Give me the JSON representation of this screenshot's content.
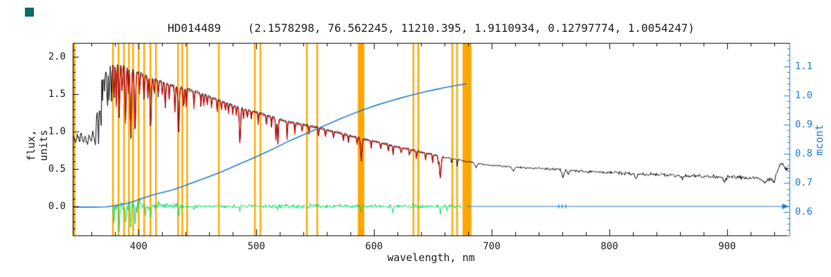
{
  "decorations": {
    "corner_swatch_color": "#0c6b6b"
  },
  "chart_data": {
    "type": "line",
    "title": "HD014489    (2.1578298, 76.562245, 11210.395, 1.9110934, 0.12797774, 1.0054247)",
    "xlabel": "wavelength, nm",
    "ylabel": "flux, units",
    "y2label": "mcont",
    "xlim": [
      344,
      953
    ],
    "ylim": [
      -0.39,
      2.19
    ],
    "y2lim": [
      0.52,
      1.18
    ],
    "x_ticks": [
      400,
      500,
      600,
      700,
      800,
      900
    ],
    "y_ticks": [
      0.0,
      0.5,
      1.0,
      1.5,
      2.0
    ],
    "y2_ticks": [
      0.6,
      0.7,
      0.8,
      0.9,
      1.0,
      1.1
    ],
    "x_minor_step": 20,
    "y_minor_step": 0.1,
    "y2_minor_step": 0.02,
    "grid": false,
    "legend": "none",
    "colors": {
      "spectrum": "#000000",
      "fit": "#cc0000",
      "mcont": "#1e7ad2",
      "residual": "#00df5f",
      "mask": "#ffa600",
      "axis": "#000000"
    },
    "noise": {
      "seed": 7,
      "base_amp": 0.015,
      "uv_amp": 0.05,
      "limit_amp": 0.38,
      "red_amp_gain": 0.025,
      "residual_amp_blue": 0.085,
      "residual_amp_mid": 0.05,
      "residual_amp": 0.032
    },
    "series": {
      "continuum": [
        [
          344,
          0.88
        ],
        [
          350,
          0.93
        ],
        [
          356,
          0.88
        ],
        [
          360,
          0.95
        ],
        [
          363,
          0.92
        ],
        [
          365,
          1.05
        ],
        [
          368,
          1.35
        ],
        [
          370,
          1.55
        ],
        [
          372,
          1.8
        ],
        [
          375,
          1.9
        ],
        [
          380,
          1.93
        ],
        [
          385,
          1.9
        ],
        [
          390,
          1.87
        ],
        [
          395,
          1.84
        ],
        [
          400,
          1.8
        ],
        [
          410,
          1.73
        ],
        [
          420,
          1.68
        ],
        [
          430,
          1.62
        ],
        [
          440,
          1.58
        ],
        [
          450,
          1.54
        ],
        [
          460,
          1.48
        ],
        [
          470,
          1.42
        ],
        [
          480,
          1.36
        ],
        [
          490,
          1.31
        ],
        [
          500,
          1.27
        ],
        [
          510,
          1.22
        ],
        [
          520,
          1.17
        ],
        [
          530,
          1.13
        ],
        [
          540,
          1.1
        ],
        [
          550,
          1.07
        ],
        [
          560,
          1.03
        ],
        [
          570,
          0.99
        ],
        [
          580,
          0.95
        ],
        [
          590,
          0.91
        ],
        [
          600,
          0.88
        ],
        [
          610,
          0.84
        ],
        [
          620,
          0.8
        ],
        [
          630,
          0.77
        ],
        [
          640,
          0.73
        ],
        [
          650,
          0.7
        ],
        [
          660,
          0.66
        ],
        [
          670,
          0.63
        ],
        [
          680,
          0.6
        ],
        [
          690,
          0.57
        ],
        [
          700,
          0.55
        ],
        [
          715,
          0.53
        ],
        [
          730,
          0.515
        ],
        [
          750,
          0.5
        ],
        [
          770,
          0.48
        ],
        [
          790,
          0.46
        ],
        [
          810,
          0.445
        ],
        [
          830,
          0.43
        ],
        [
          850,
          0.42
        ],
        [
          870,
          0.41
        ],
        [
          890,
          0.4
        ],
        [
          910,
          0.385
        ],
        [
          925,
          0.375
        ],
        [
          938,
          0.37
        ],
        [
          942,
          0.45
        ],
        [
          946,
          0.58
        ],
        [
          950,
          0.5
        ]
      ],
      "absorption_lines": [
        [
          373.5,
          0.6,
          0.5
        ],
        [
          375.0,
          0.55,
          0.5
        ],
        [
          377.0,
          0.5,
          0.5
        ],
        [
          379.0,
          0.55,
          0.5
        ],
        [
          381.0,
          0.6,
          0.5
        ],
        [
          383.5,
          0.75,
          0.6
        ],
        [
          386.0,
          0.4,
          0.5
        ],
        [
          388.9,
          0.8,
          0.6
        ],
        [
          391.2,
          0.35,
          0.4
        ],
        [
          393.4,
          0.95,
          0.7
        ],
        [
          397.0,
          0.85,
          0.7
        ],
        [
          400.9,
          0.3,
          0.4
        ],
        [
          404.6,
          0.35,
          0.5
        ],
        [
          407.8,
          0.3,
          0.4
        ],
        [
          410.2,
          0.7,
          0.7
        ],
        [
          413.1,
          0.25,
          0.4
        ],
        [
          416.7,
          0.25,
          0.4
        ],
        [
          420.2,
          0.22,
          0.4
        ],
        [
          422.7,
          0.35,
          0.5
        ],
        [
          426.0,
          0.2,
          0.4
        ],
        [
          430.8,
          0.35,
          0.5
        ],
        [
          434.0,
          0.65,
          0.7
        ],
        [
          438.3,
          0.3,
          0.5
        ],
        [
          440.5,
          0.25,
          0.4
        ],
        [
          447.1,
          0.25,
          0.4
        ],
        [
          452.9,
          0.18,
          0.4
        ],
        [
          455.4,
          0.15,
          0.4
        ],
        [
          458.2,
          0.15,
          0.4
        ],
        [
          462.0,
          0.14,
          0.4
        ],
        [
          466.8,
          0.16,
          0.4
        ],
        [
          470.3,
          0.12,
          0.4
        ],
        [
          473.7,
          0.12,
          0.4
        ],
        [
          476.3,
          0.14,
          0.4
        ],
        [
          480.0,
          0.12,
          0.4
        ],
        [
          483.0,
          0.12,
          0.4
        ],
        [
          486.1,
          0.5,
          0.7
        ],
        [
          489.1,
          0.14,
          0.4
        ],
        [
          492.3,
          0.14,
          0.4
        ],
        [
          495.8,
          0.12,
          0.4
        ],
        [
          501.6,
          0.16,
          0.4
        ],
        [
          508.6,
          0.14,
          0.4
        ],
        [
          512.9,
          0.14,
          0.4
        ],
        [
          516.7,
          0.3,
          0.5
        ],
        [
          518.4,
          0.35,
          0.5
        ],
        [
          526.2,
          0.25,
          0.4
        ],
        [
          532.8,
          0.15,
          0.4
        ],
        [
          539.0,
          0.12,
          0.4
        ],
        [
          544.7,
          0.12,
          0.4
        ],
        [
          552.8,
          0.14,
          0.4
        ],
        [
          558.8,
          0.12,
          0.4
        ],
        [
          565.5,
          0.1,
          0.4
        ],
        [
          574.0,
          0.1,
          0.4
        ],
        [
          578.2,
          0.1,
          0.4
        ],
        [
          585.7,
          0.1,
          0.4
        ],
        [
          589.2,
          0.3,
          0.8
        ],
        [
          597.6,
          0.1,
          0.4
        ],
        [
          605.7,
          0.09,
          0.4
        ],
        [
          612.2,
          0.1,
          0.4
        ],
        [
          616.2,
          0.12,
          0.4
        ],
        [
          623.1,
          0.1,
          0.4
        ],
        [
          630.2,
          0.1,
          0.4
        ],
        [
          636.0,
          0.1,
          0.4
        ],
        [
          643.9,
          0.1,
          0.4
        ],
        [
          649.9,
          0.12,
          0.4
        ],
        [
          654.6,
          0.1,
          0.4
        ],
        [
          656.3,
          0.3,
          0.9
        ],
        [
          666.0,
          0.08,
          0.4
        ],
        [
          670.8,
          0.1,
          0.4
        ]
      ],
      "telluric_lines": [
        [
          686.7,
          0.06,
          1.2
        ],
        [
          718.5,
          0.05,
          1.5
        ],
        [
          760.5,
          0.09,
          1.3
        ],
        [
          765.0,
          0.05,
          1.2
        ],
        [
          822.7,
          0.06,
          1.1
        ],
        [
          862.0,
          0.04,
          1.5
        ],
        [
          898.0,
          0.05,
          1.8
        ],
        [
          932.0,
          0.06,
          2.2
        ],
        [
          940.0,
          0.07,
          1.6
        ]
      ],
      "fit_range": [
        378,
        661
      ],
      "residual_range": [
        378,
        675
      ],
      "residual_spikes": [
        [
          379,
          -0.22,
          0.5
        ],
        [
          383.5,
          -0.3,
          0.5
        ],
        [
          388.9,
          -0.26,
          0.5
        ],
        [
          393.4,
          -0.34,
          0.5
        ],
        [
          397,
          -0.28,
          0.5
        ],
        [
          401,
          0.1,
          0.4
        ],
        [
          406,
          -0.12,
          0.4
        ],
        [
          410.2,
          -0.15,
          0.5
        ],
        [
          417,
          0.08,
          0.4
        ],
        [
          434,
          -0.12,
          0.5
        ],
        [
          447,
          -0.06,
          0.4
        ],
        [
          486.1,
          -0.08,
          0.5
        ],
        [
          518,
          -0.06,
          0.4
        ],
        [
          546,
          0.05,
          0.4
        ],
        [
          589,
          -0.07,
          0.5
        ],
        [
          616,
          -0.08,
          0.4
        ],
        [
          633,
          0.06,
          0.4
        ],
        [
          656.3,
          -0.1,
          0.5
        ],
        [
          662,
          -0.06,
          0.4
        ]
      ],
      "mcont_curve": [
        [
          344,
          0.617
        ],
        [
          360,
          0.617
        ],
        [
          372,
          0.618
        ],
        [
          380,
          0.622
        ],
        [
          388,
          0.628
        ],
        [
          396,
          0.637
        ],
        [
          404,
          0.648
        ],
        [
          412,
          0.659
        ],
        [
          420,
          0.667
        ],
        [
          428,
          0.675
        ],
        [
          436,
          0.686
        ],
        [
          444,
          0.698
        ],
        [
          452,
          0.71
        ],
        [
          460,
          0.722
        ],
        [
          468,
          0.734
        ],
        [
          476,
          0.748
        ],
        [
          484,
          0.762
        ],
        [
          492,
          0.776
        ],
        [
          500,
          0.79
        ],
        [
          508,
          0.805
        ],
        [
          516,
          0.82
        ],
        [
          524,
          0.836
        ],
        [
          532,
          0.851
        ],
        [
          540,
          0.865
        ],
        [
          548,
          0.879
        ],
        [
          556,
          0.893
        ],
        [
          564,
          0.907
        ],
        [
          572,
          0.921
        ],
        [
          580,
          0.934
        ],
        [
          588,
          0.947
        ],
        [
          596,
          0.958
        ],
        [
          604,
          0.969
        ],
        [
          612,
          0.979
        ],
        [
          620,
          0.988
        ],
        [
          628,
          0.997
        ],
        [
          636,
          1.005
        ],
        [
          644,
          1.013
        ],
        [
          652,
          1.02
        ],
        [
          660,
          1.027
        ],
        [
          668,
          1.033
        ],
        [
          674,
          1.037
        ],
        [
          679,
          1.04
        ]
      ],
      "mcont_baseline": {
        "start": 679,
        "end": 948,
        "value": 0.0,
        "arrow": true,
        "tick_marks": [
          757,
          760,
          763
        ]
      },
      "mask_bands": [
        [
          344.8,
          2.8
        ],
        [
          378.2,
          1.4
        ],
        [
          382.9,
          1.4
        ],
        [
          387.6,
          1.4
        ],
        [
          391.8,
          1.4
        ],
        [
          395.3,
          1.4
        ],
        [
          400.0,
          1.4
        ],
        [
          404.7,
          1.4
        ],
        [
          410.0,
          1.4
        ],
        [
          414.7,
          1.4
        ],
        [
          433.5,
          1.4
        ],
        [
          437.1,
          1.4
        ],
        [
          441.2,
          1.4
        ],
        [
          468.2,
          1.4
        ],
        [
          498.8,
          1.4
        ],
        [
          503.5,
          1.4
        ],
        [
          543.0,
          1.4
        ],
        [
          551.8,
          1.4
        ],
        [
          589.0,
          5.5
        ],
        [
          633.5,
          1.4
        ],
        [
          637.6,
          1.4
        ],
        [
          666.5,
          1.4
        ],
        [
          670.6,
          1.4
        ],
        [
          679.0,
          7.5
        ]
      ]
    }
  }
}
